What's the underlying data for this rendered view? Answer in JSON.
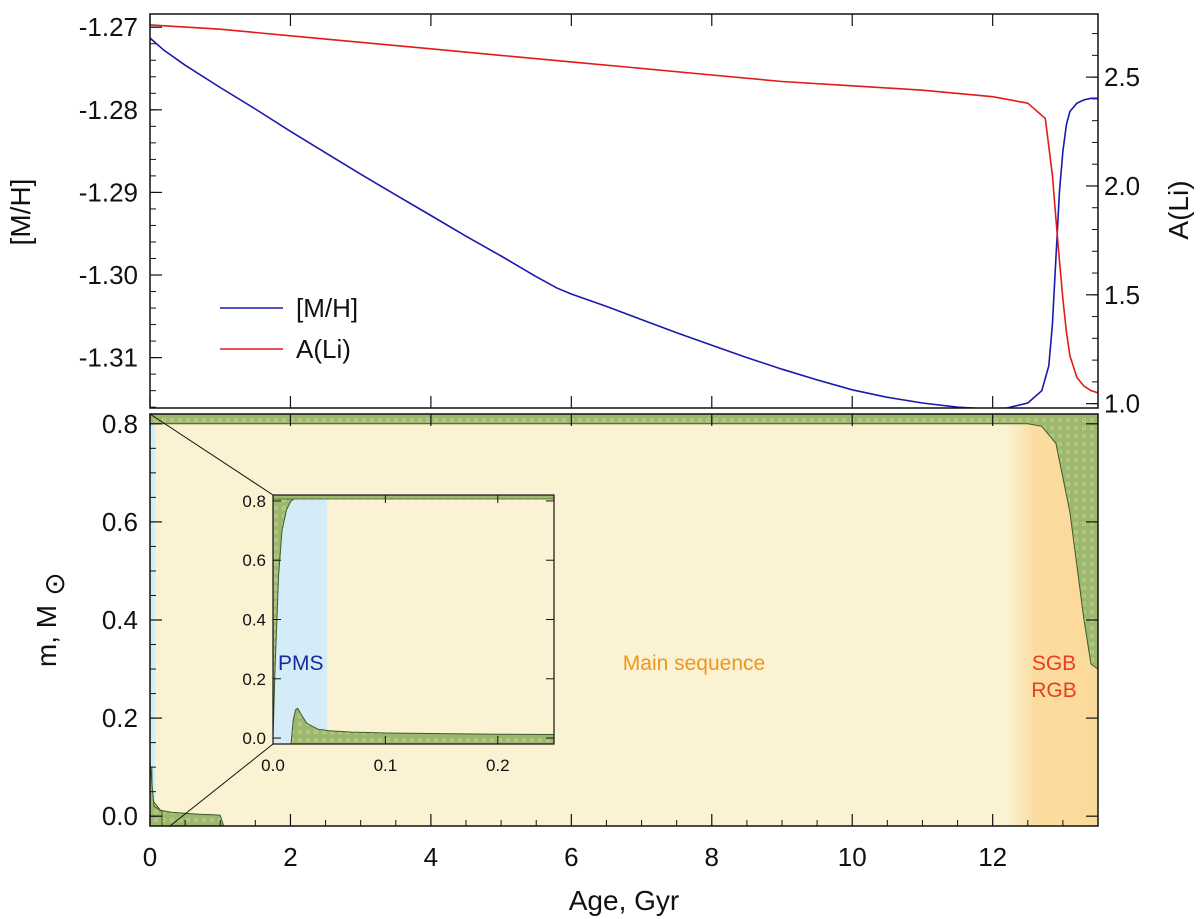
{
  "chart_data": [
    {
      "type": "line",
      "panel": "top",
      "xlim": [
        0,
        13.5
      ],
      "ylim_left": [
        -1.3161,
        -1.2684
      ],
      "ylim_right": [
        0.98,
        2.79
      ],
      "ylabel": "[M/H]",
      "ylabel_right": "A(Li)",
      "left_ticks": [
        "-1.27",
        "-1.28",
        "-1.29",
        "-1.30",
        "-1.31"
      ],
      "left_tick_values": [
        -1.27,
        -1.28,
        -1.29,
        -1.3,
        -1.31
      ],
      "right_ticks": [
        "2.5",
        "2.0",
        "1.5",
        "1.0"
      ],
      "right_tick_values": [
        2.5,
        2.0,
        1.5,
        1.0
      ],
      "legend": {
        "placement": "lower-left",
        "entries": [
          "[M/H]",
          "A(Li)"
        ]
      },
      "series": [
        {
          "name": "[M/H]",
          "axis": "left",
          "color": "#1a1aaa",
          "x": [
            0,
            0.2,
            0.5,
            1,
            1.5,
            2,
            2.5,
            3,
            3.5,
            4,
            4.5,
            5,
            5.5,
            5.8,
            6,
            6.5,
            7,
            7.5,
            8,
            8.5,
            9,
            9.5,
            10,
            10.5,
            11,
            11.5,
            11.9,
            12.2,
            12.5,
            12.7,
            12.8,
            12.85,
            12.9,
            12.95,
            13,
            13.05,
            13.1,
            13.2,
            13.3,
            13.4,
            13.5
          ],
          "y": [
            -1.2713,
            -1.2728,
            -1.2746,
            -1.2773,
            -1.2799,
            -1.2826,
            -1.2852,
            -1.2878,
            -1.2903,
            -1.2928,
            -1.2953,
            -1.2977,
            -1.3002,
            -1.3016,
            -1.3023,
            -1.3038,
            -1.3054,
            -1.307,
            -1.3085,
            -1.31,
            -1.3114,
            -1.3127,
            -1.3139,
            -1.3148,
            -1.3155,
            -1.316,
            -1.3162,
            -1.3161,
            -1.3155,
            -1.314,
            -1.311,
            -1.306,
            -1.298,
            -1.29,
            -1.285,
            -1.2818,
            -1.2802,
            -1.2792,
            -1.2788,
            -1.2786,
            -1.2786
          ]
        },
        {
          "name": "A(Li)",
          "axis": "right",
          "color": "#e31a1a",
          "x": [
            0,
            1,
            2,
            3,
            4,
            5,
            6,
            7,
            8,
            9,
            10,
            11,
            12,
            12.5,
            12.75,
            12.85,
            12.9,
            12.95,
            13,
            13.05,
            13.1,
            13.2,
            13.3,
            13.4,
            13.5
          ],
          "y": [
            2.74,
            2.72,
            2.69,
            2.66,
            2.63,
            2.6,
            2.57,
            2.54,
            2.51,
            2.48,
            2.46,
            2.44,
            2.41,
            2.38,
            2.31,
            2.05,
            1.85,
            1.66,
            1.48,
            1.33,
            1.22,
            1.12,
            1.08,
            1.06,
            1.05
          ]
        }
      ]
    },
    {
      "type": "area",
      "panel": "bottom",
      "xlim": [
        0,
        13.5
      ],
      "ylim": [
        -0.02,
        0.82
      ],
      "xlabel": "Age, Gyr",
      "ylabel": "m, M",
      "ylabel_symbol": "⊙",
      "x_ticks": [
        "0",
        "2",
        "4",
        "6",
        "8",
        "10",
        "12"
      ],
      "x_tick_values": [
        0,
        2,
        4,
        6,
        8,
        10,
        12
      ],
      "y_ticks": [
        "0.8",
        "0.6",
        "0.4",
        "0.2",
        "0.0"
      ],
      "y_tick_values": [
        0.8,
        0.6,
        0.4,
        0.2,
        0.0
      ],
      "phases": [
        {
          "label": "PMS",
          "x_range": [
            0,
            0.05
          ],
          "color": "#d4ecf7",
          "label_color": "#1a2a99"
        },
        {
          "label": "Main sequence",
          "x_range": [
            0.05,
            12.3
          ],
          "color": "#faf2d2",
          "label_color": "#f0961e"
        },
        {
          "label": "SGB\nRGB",
          "x_range": [
            12.3,
            13.5
          ],
          "color": "#fbdca0",
          "label_color": "#e8401e"
        }
      ],
      "convective_zones": [
        {
          "region": "envelope",
          "fill": "#9db76c",
          "x": [
            0,
            0.05,
            0.15,
            0.3,
            0.5,
            0.7,
            0.9,
            1.0,
            1.05
          ],
          "y_bottom": [
            -0.02,
            0.03,
            0.012,
            0.008,
            0.006,
            0.004,
            0.003,
            0.002,
            -0.02
          ]
        },
        {
          "region": "spike",
          "fill": "#9db76c",
          "x": [
            0.02,
            0.022,
            0.025,
            0.03,
            0.04,
            0.05
          ],
          "y_top": [
            0.0,
            0.09,
            0.1,
            0.06,
            0.03,
            0.02
          ]
        },
        {
          "region": "surface",
          "fill": "#9db76c",
          "x": [
            0,
            12.3,
            12.5,
            12.7,
            12.9,
            13.1,
            13.3,
            13.4,
            13.5
          ],
          "y_bottom": [
            0.8,
            0.8,
            0.8,
            0.795,
            0.76,
            0.62,
            0.4,
            0.31,
            0.3
          ]
        }
      ]
    },
    {
      "type": "area",
      "panel": "inset",
      "xlim": [
        0,
        0.25
      ],
      "ylim": [
        -0.02,
        0.82
      ],
      "x_ticks": [
        "0.0",
        "0.1",
        "0.2"
      ],
      "x_tick_values": [
        0,
        0.1,
        0.2
      ],
      "y_ticks": [
        "0.8",
        "0.6",
        "0.4",
        "0.2",
        "0.0"
      ],
      "y_tick_values": [
        0.8,
        0.6,
        0.4,
        0.2,
        0.0
      ],
      "phase_label": "PMS"
    }
  ]
}
